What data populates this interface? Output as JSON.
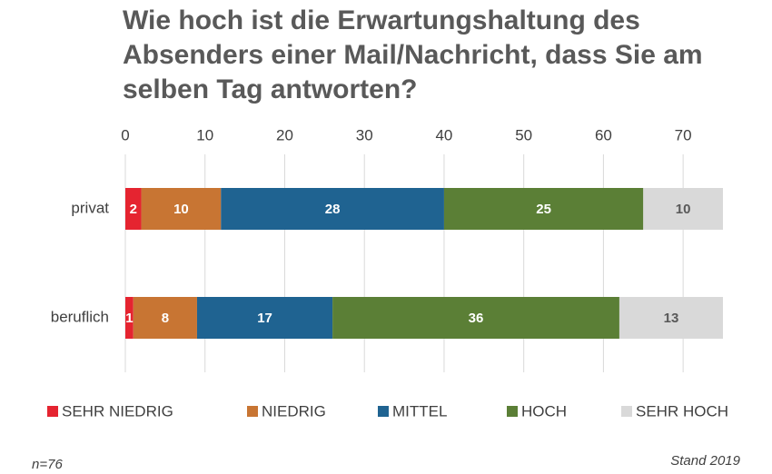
{
  "chart_data": {
    "type": "stacked_barh",
    "title": "Wie hoch ist die Erwartungshaltung des Absenders einer Mail/Nachricht, dass Sie am selben Tag antworten?",
    "categories": [
      "privat",
      "beruflich"
    ],
    "series": [
      {
        "name": "SEHR NIEDRIG",
        "color": "#e52430",
        "label_color": "#ffffff",
        "values": [
          2,
          1
        ]
      },
      {
        "name": "NIEDRIG",
        "color": "#c87533",
        "label_color": "#ffffff",
        "values": [
          10,
          8
        ]
      },
      {
        "name": "MITTEL",
        "color": "#1f6391",
        "label_color": "#ffffff",
        "values": [
          28,
          17
        ]
      },
      {
        "name": "HOCH",
        "color": "#5b7f36",
        "label_color": "#ffffff",
        "values": [
          25,
          36
        ]
      },
      {
        "name": "SEHR HOCH",
        "color": "#d9d9d9",
        "label_color": "#595959",
        "values": [
          10,
          13
        ]
      }
    ],
    "xlim": [
      0,
      75
    ],
    "xticks": [
      0,
      10,
      20,
      30,
      40,
      50,
      60,
      70
    ],
    "grid": true,
    "legend": "bottom",
    "annotations": [
      "n=76",
      "Stand 2019"
    ]
  }
}
